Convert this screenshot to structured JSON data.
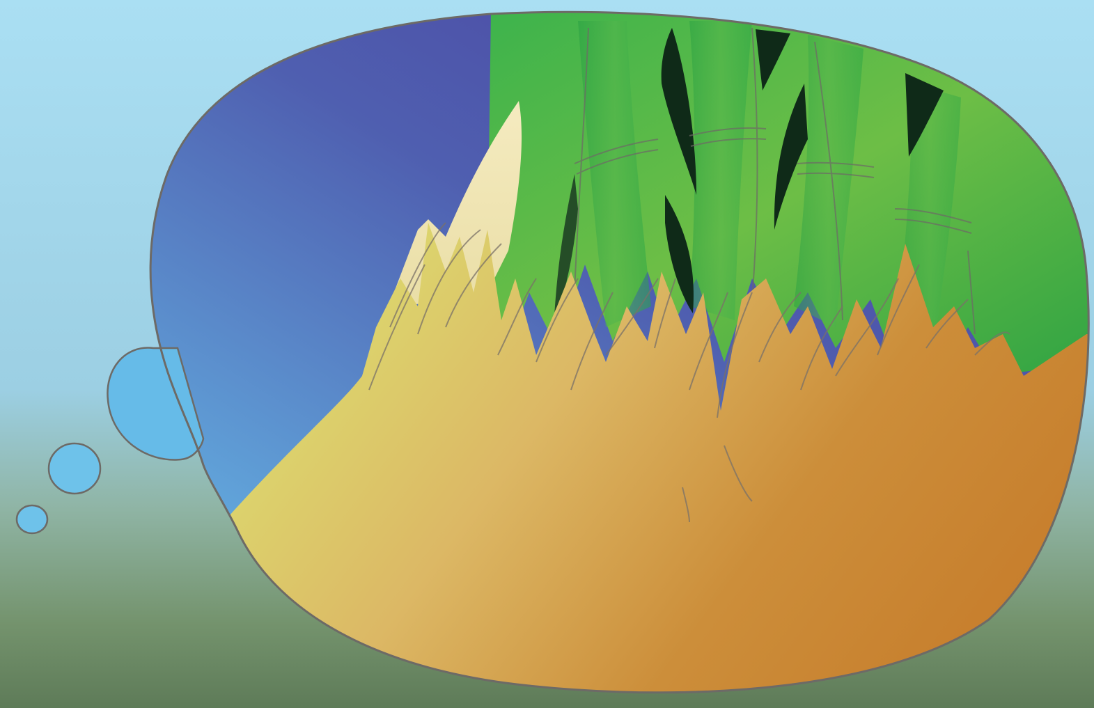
{
  "scene": {
    "subject": "thought-bubble-bamboo-illustration",
    "colors": {
      "sky_top": "#A9DDF2",
      "sky_mid": "#9ED2E6",
      "ground": "#6E8E68",
      "ground_dark": "#5F7D5A",
      "night_sky": "#4E47A6",
      "night_sky_light": "#66B9E6",
      "bamboo_green": "#2FAE4A",
      "bamboo_light": "#8CC84B",
      "bamboo_shadow": "#0F2A18",
      "shoot_pale": "#F3E7B8",
      "ground_yellow": "#D8DA6A",
      "ground_orange": "#C9812C",
      "outline": "#6D6A66",
      "small_bubble": "#6EC2EA"
    },
    "icons": [
      "thought-bubble-icon",
      "bamboo-stalk-icon",
      "bamboo-shoot-icon"
    ]
  }
}
